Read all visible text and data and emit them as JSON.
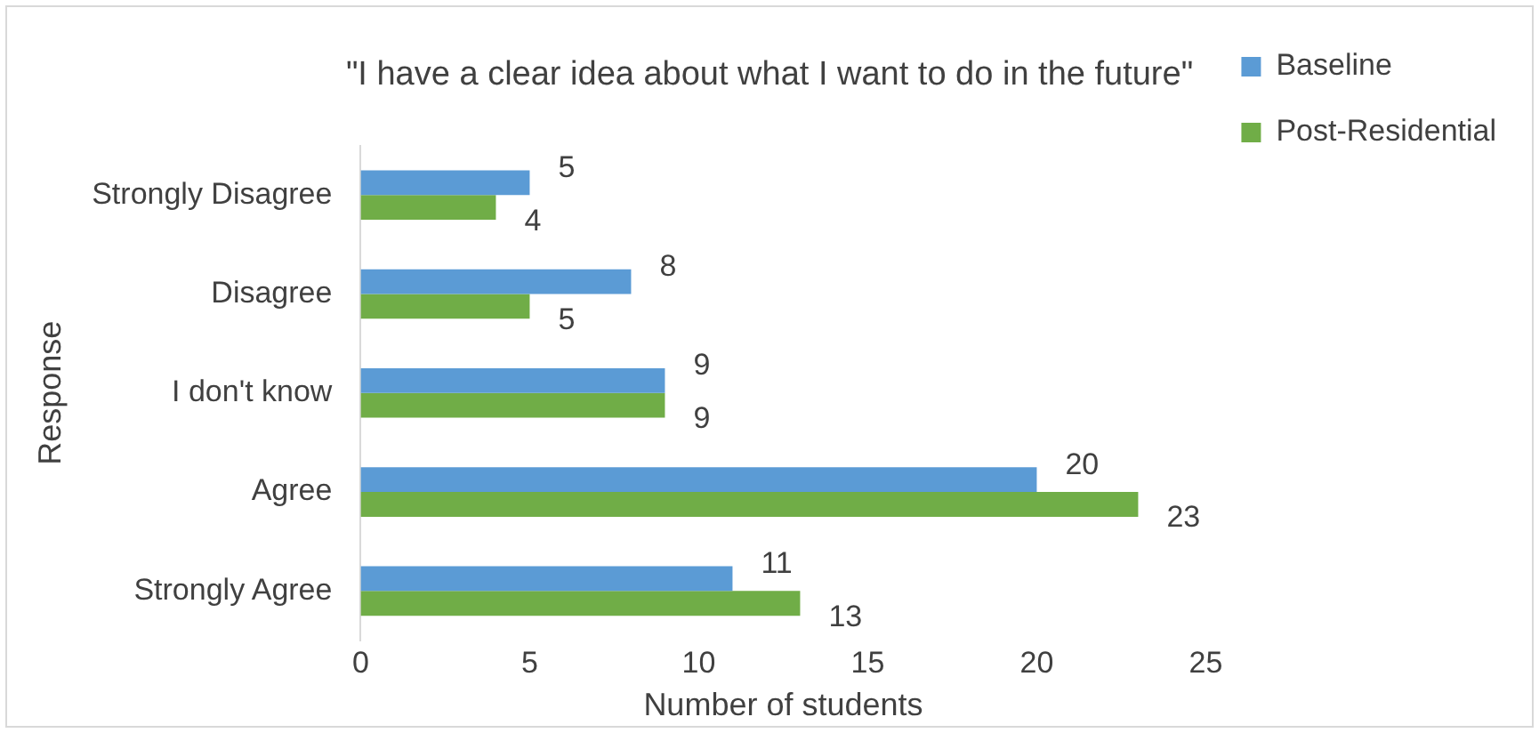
{
  "chart_data": {
    "type": "bar",
    "orientation": "horizontal",
    "title": "\"I have a clear idea about what I want to do in the future\"",
    "xlabel": "Number of students",
    "ylabel": "Response",
    "categories": [
      "Strongly Disagree",
      "Disagree",
      "I don't know",
      "Agree",
      "Strongly Agree"
    ],
    "series": [
      {
        "name": "Baseline",
        "color": "#5b9bd5",
        "values": [
          5,
          8,
          9,
          20,
          11
        ]
      },
      {
        "name": "Post-Residential",
        "color": "#70ad47",
        "values": [
          4,
          5,
          9,
          23,
          13
        ]
      }
    ],
    "xlim": [
      0,
      25
    ],
    "xticks": [
      0,
      5,
      10,
      15,
      20,
      25
    ],
    "grid": false,
    "legend": "right",
    "data_labels": true
  }
}
